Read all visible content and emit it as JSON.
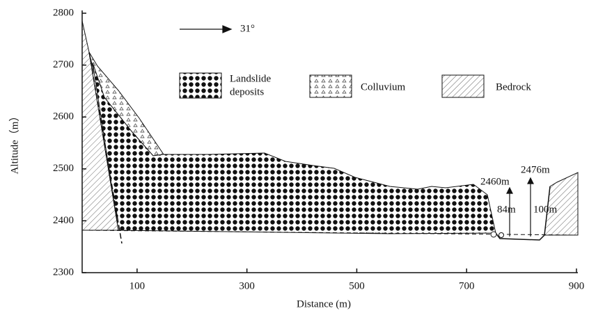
{
  "axes": {
    "x_label": "Distance (m)",
    "y_label": "Altitude（m）",
    "xlim": [
      0,
      900
    ],
    "ylim": [
      2300,
      2800
    ],
    "xticks": [
      100,
      300,
      500,
      700,
      900
    ],
    "yticks": [
      2300,
      2400,
      2500,
      2600,
      2700,
      2800
    ]
  },
  "direction": "31°",
  "legend": [
    {
      "lines": [
        "Landslide",
        "deposits"
      ]
    },
    {
      "lines": [
        "Colluvium"
      ]
    },
    {
      "lines": [
        "Bedrock"
      ]
    }
  ],
  "annotations": [
    "2476m",
    "2460m",
    "84m",
    "100m"
  ]
}
